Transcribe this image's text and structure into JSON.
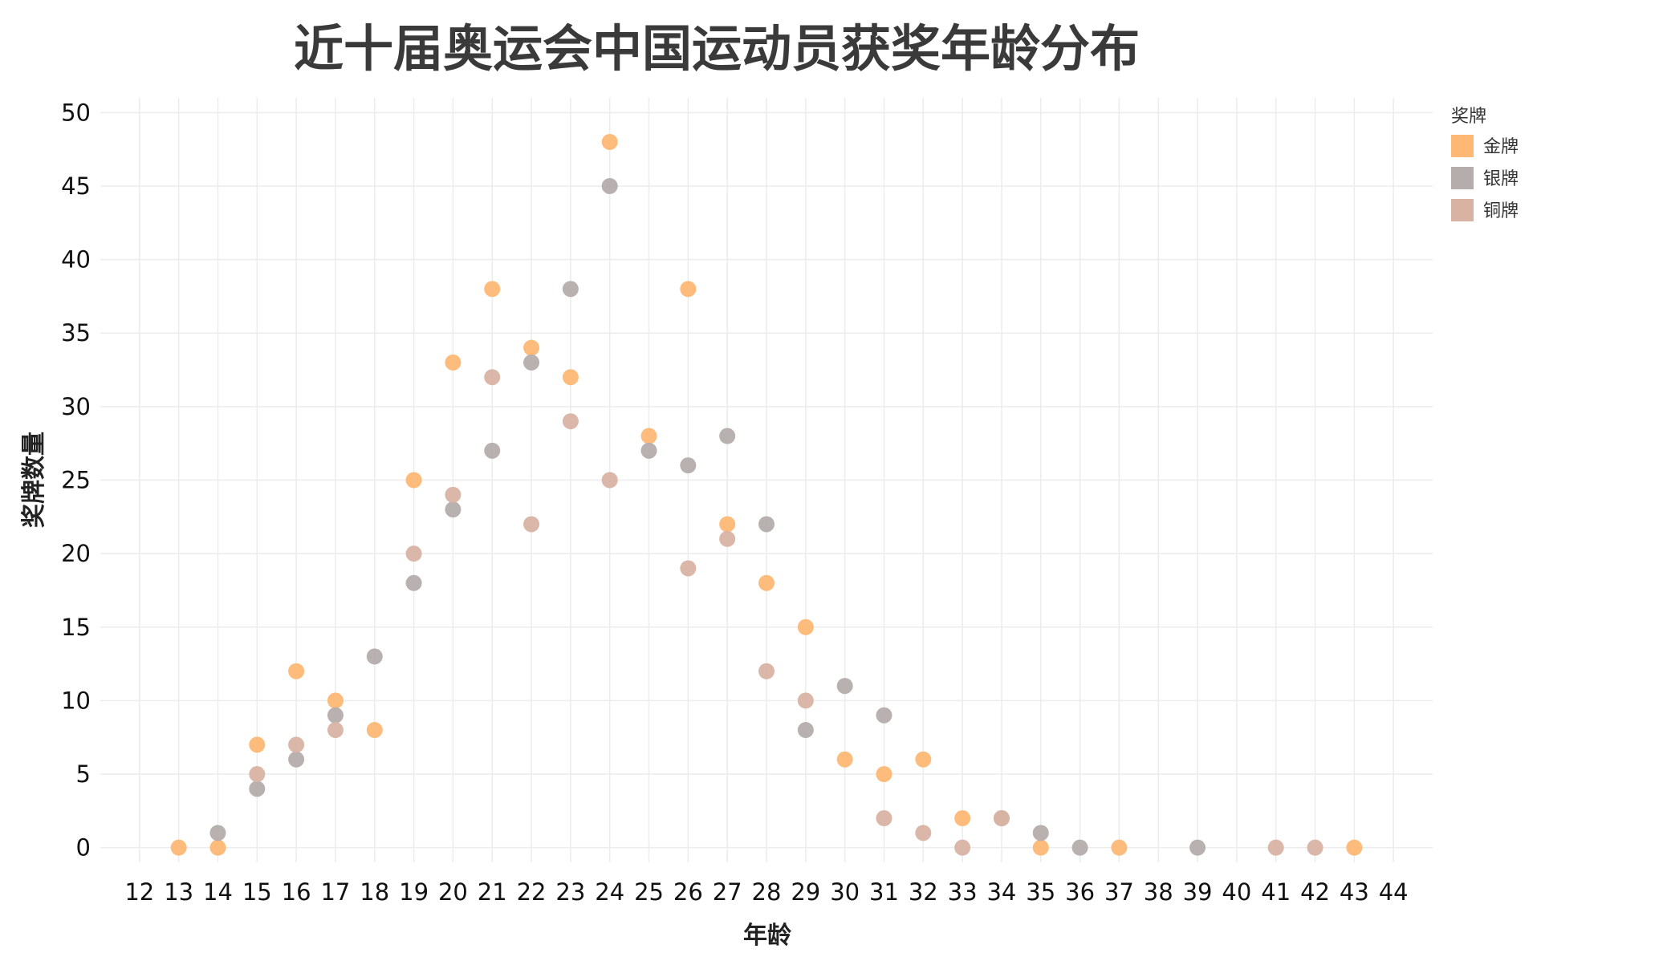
{
  "chart_data": {
    "type": "scatter",
    "title": "近十届奥运会中国运动员获奖年龄分布",
    "xlabel": "年龄",
    "ylabel": "奖牌数量",
    "xlim": [
      11,
      45
    ],
    "ylim": [
      -1,
      51
    ],
    "x_ticks": [
      12,
      13,
      14,
      15,
      16,
      17,
      18,
      19,
      20,
      21,
      22,
      23,
      24,
      25,
      26,
      27,
      28,
      29,
      30,
      31,
      32,
      33,
      34,
      35,
      36,
      37,
      38,
      39,
      40,
      41,
      42,
      43,
      44
    ],
    "y_ticks": [
      0,
      5,
      10,
      15,
      20,
      25,
      30,
      35,
      40,
      45,
      50
    ],
    "grid": true,
    "legend": {
      "title": "奖牌",
      "placement": "top-right"
    },
    "series": [
      {
        "name": "金牌",
        "color": "#FDB875",
        "points": [
          [
            13,
            0
          ],
          [
            14,
            0
          ],
          [
            15,
            7
          ],
          [
            16,
            12
          ],
          [
            17,
            10
          ],
          [
            18,
            8
          ],
          [
            19,
            25
          ],
          [
            20,
            33
          ],
          [
            21,
            38
          ],
          [
            22,
            34
          ],
          [
            23,
            32
          ],
          [
            24,
            48
          ],
          [
            25,
            28
          ],
          [
            26,
            38
          ],
          [
            27,
            22
          ],
          [
            28,
            18
          ],
          [
            29,
            15
          ],
          [
            30,
            6
          ],
          [
            31,
            5
          ],
          [
            32,
            6
          ],
          [
            33,
            2
          ],
          [
            35,
            0
          ],
          [
            37,
            0
          ],
          [
            43,
            0
          ]
        ]
      },
      {
        "name": "银牌",
        "color": "#B5ACAC",
        "points": [
          [
            14,
            1
          ],
          [
            15,
            4
          ],
          [
            16,
            6
          ],
          [
            17,
            9
          ],
          [
            18,
            13
          ],
          [
            19,
            18
          ],
          [
            20,
            23
          ],
          [
            21,
            27
          ],
          [
            22,
            33
          ],
          [
            23,
            38
          ],
          [
            24,
            45
          ],
          [
            25,
            27
          ],
          [
            26,
            26
          ],
          [
            27,
            28
          ],
          [
            28,
            22
          ],
          [
            29,
            8
          ],
          [
            30,
            11
          ],
          [
            31,
            9
          ],
          [
            34,
            2
          ],
          [
            35,
            1
          ],
          [
            36,
            0
          ],
          [
            39,
            0
          ]
        ]
      },
      {
        "name": "铜牌",
        "color": "#D8B3A3",
        "points": [
          [
            15,
            5
          ],
          [
            16,
            7
          ],
          [
            17,
            8
          ],
          [
            19,
            20
          ],
          [
            20,
            24
          ],
          [
            21,
            32
          ],
          [
            22,
            22
          ],
          [
            23,
            29
          ],
          [
            24,
            25
          ],
          [
            26,
            19
          ],
          [
            27,
            21
          ],
          [
            28,
            12
          ],
          [
            29,
            10
          ],
          [
            31,
            2
          ],
          [
            32,
            1
          ],
          [
            33,
            0
          ],
          [
            34,
            2
          ],
          [
            41,
            0
          ],
          [
            42,
            0
          ]
        ]
      }
    ]
  }
}
